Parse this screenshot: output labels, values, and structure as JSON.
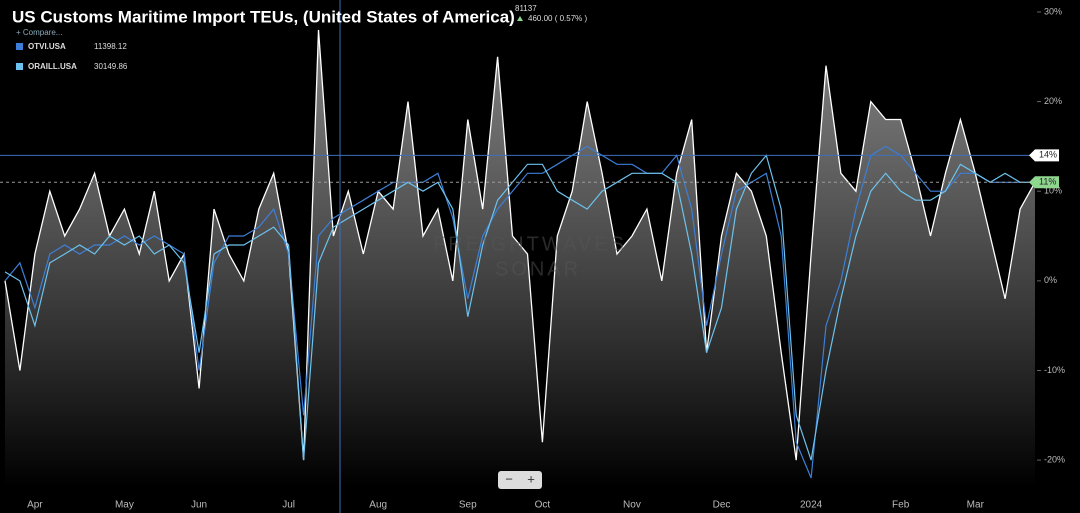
{
  "chart_data": {
    "type": "line",
    "title": "US Customs Maritime Import TEUs, (United States of America)",
    "price": "81137",
    "change": "460.00 ( 0.57% )",
    "compare": "+ Compare...",
    "watermark": [
      "FREIGHTWAVES",
      "SONAR"
    ],
    "controls": [
      "−",
      "+"
    ],
    "categories": [
      null,
      null,
      "Apr",
      null,
      null,
      null,
      null,
      null,
      "May",
      null,
      null,
      null,
      null,
      "Jun",
      null,
      null,
      null,
      null,
      null,
      "Jul",
      null,
      null,
      null,
      null,
      null,
      "Aug",
      null,
      null,
      null,
      null,
      null,
      "Sep",
      null,
      null,
      null,
      null,
      "Oct",
      null,
      null,
      null,
      null,
      null,
      "Nov",
      null,
      null,
      null,
      null,
      null,
      "Dec",
      null,
      null,
      null,
      null,
      null,
      "2024",
      null,
      null,
      null,
      null,
      null,
      "Feb",
      null,
      null,
      null,
      null,
      "Mar",
      null,
      null,
      null,
      null
    ],
    "series": [
      {
        "color": "#ffffff",
        "fill": true,
        "values": [
          0,
          -10,
          3,
          10,
          5,
          8,
          12,
          5,
          8,
          3,
          10,
          0,
          3,
          -12,
          8,
          3,
          0,
          8,
          12,
          3,
          -20,
          28,
          5,
          10,
          3,
          10,
          8,
          20,
          5,
          8,
          0,
          18,
          8,
          25,
          5,
          3,
          -18,
          5,
          10,
          20,
          12,
          3,
          5,
          8,
          0,
          12,
          18,
          -8,
          5,
          12,
          10,
          5,
          -8,
          -20,
          3,
          24,
          12,
          10,
          20,
          18,
          18,
          12,
          5,
          12,
          18,
          12,
          5,
          -2,
          8,
          11
        ]
      },
      {
        "name": "OTVI.USA",
        "legend_value": "11398.12",
        "color": "#3d7fd6",
        "values": [
          0,
          2,
          -3,
          3,
          4,
          3,
          4,
          4,
          5,
          4,
          5,
          4,
          3,
          -10,
          2,
          5,
          5,
          6,
          8,
          3,
          -15,
          5,
          7,
          8,
          9,
          10,
          11,
          11,
          11,
          12,
          7,
          -2,
          5,
          8,
          10,
          12,
          12,
          13,
          14,
          15,
          14,
          13,
          13,
          12,
          12,
          14,
          8,
          -5,
          3,
          10,
          11,
          12,
          5,
          -18,
          -22,
          -5,
          0,
          8,
          14,
          15,
          14,
          12,
          10,
          10,
          12,
          12,
          11,
          11,
          11,
          11
        ]
      },
      {
        "name": "ORAILL.USA",
        "legend_value": "30149.86",
        "color": "#6cc2ec",
        "values": [
          1,
          0,
          -5,
          2,
          3,
          4,
          3,
          5,
          4,
          5,
          3,
          4,
          2,
          -8,
          3,
          4,
          4,
          5,
          6,
          4,
          -20,
          2,
          6,
          7,
          8,
          9,
          10,
          11,
          10,
          11,
          8,
          -4,
          4,
          9,
          11,
          13,
          13,
          10,
          9,
          8,
          10,
          11,
          12,
          12,
          12,
          11,
          3,
          -8,
          -3,
          8,
          12,
          14,
          8,
          -15,
          -20,
          -10,
          -2,
          5,
          10,
          12,
          10,
          9,
          9,
          10,
          13,
          12,
          11,
          12,
          11,
          11
        ]
      }
    ],
    "ylim": [
      -23,
      31
    ],
    "yticks": [
      {
        "value": 30,
        "label": "30%"
      },
      {
        "value": 20,
        "label": "20%"
      },
      {
        "value": 10,
        "label": "10%"
      },
      {
        "value": 0,
        "label": "0%"
      },
      {
        "value": -10,
        "label": "-10%"
      },
      {
        "value": -20,
        "label": "-20%"
      }
    ],
    "badges": [
      {
        "value": 14,
        "label": "14%",
        "color": "#ffffff",
        "line": "#3d6fb8"
      },
      {
        "value": 11,
        "label": "11%",
        "color": "#8fd68f",
        "line": "#999999"
      }
    ],
    "grid": false
  }
}
